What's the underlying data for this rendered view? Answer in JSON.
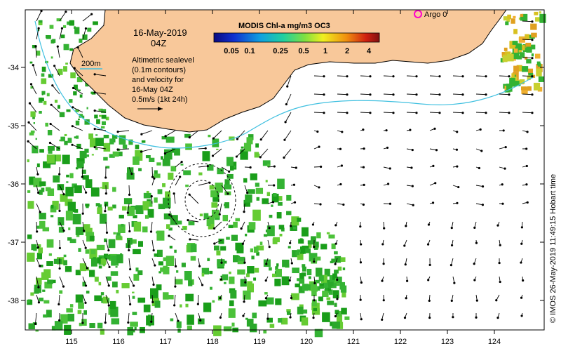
{
  "map": {
    "date_line1": "16-May-2019",
    "date_line2": "04Z",
    "contour_label": "200m",
    "description_lines": [
      "Altimetric sealevel",
      "(0.1m contours)",
      "and velocity for",
      "16-May 04Z",
      "0.5m/s (1kt 24h)"
    ],
    "colorbar_title": "MODIS Chl-a mg/m3 OC3",
    "colorbar_ticks": [
      "0.05",
      "0.1",
      "0.25",
      "0.5",
      "1",
      "2",
      "4"
    ],
    "argo_label": "Argo 0",
    "credit": "© IMOS 26-May-2019 11:49:15 Hobart time",
    "x_ticks": [
      "115",
      "116",
      "117",
      "118",
      "119",
      "120",
      "121",
      "122",
      "123",
      "124"
    ],
    "y_ticks": [
      "-34",
      "-35",
      "-36",
      "-37",
      "-38"
    ],
    "colors": {
      "land": "#f8c89a",
      "contour_200m": "#40c0e0",
      "chl_low": "#1a9e1a",
      "chl_mid": "#66cc33",
      "chl_high": "#e0a020",
      "argo": "#ff00cc"
    }
  }
}
